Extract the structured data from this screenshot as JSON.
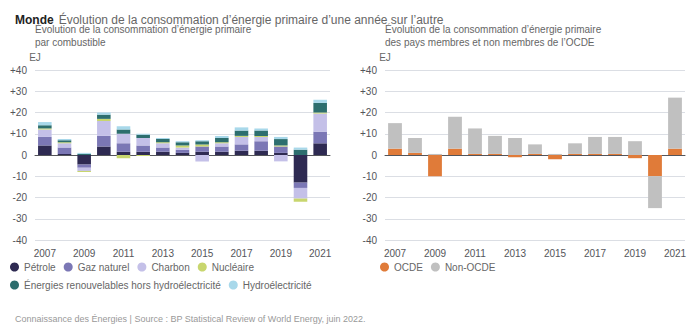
{
  "title": "Monde",
  "subtitle": "Évolution de la consommation d’énergie primaire d’une année sur l’autre",
  "annotations": [
    "Connaissance des Énergies | Source : BP Statistical Review of World Energy, juin 2022."
  ],
  "chart_data": [
    {
      "type": "bar",
      "stacked": true,
      "title": "Évolution de la consommation d’énergie primaire",
      "subtitle": "par combustible",
      "ylabel": "EJ",
      "categories": [
        "2007",
        null,
        "2009",
        null,
        "2011",
        null,
        "2013",
        null,
        "2015",
        null,
        "2017",
        null,
        "2019",
        null,
        "2021"
      ],
      "ylim": [
        -40,
        40
      ],
      "yticks": [
        -40,
        -30,
        -20,
        -10,
        0,
        {
          "value": 10,
          "label": "+10"
        },
        {
          "value": 20,
          "label": "+20"
        },
        {
          "value": 30,
          "label": "+30"
        },
        {
          "value": 40,
          "label": "+40"
        }
      ],
      "grid": true,
      "legend": "bottom",
      "series": [
        {
          "name": "Pétrole",
          "color": "#2e2a52",
          "values": [
            4.5,
            0.5,
            -4.5,
            4.0,
            1.5,
            1.5,
            1.5,
            1.0,
            1.5,
            1.5,
            2.0,
            2.0,
            1.0,
            -13.0,
            5.5
          ]
        },
        {
          "name": "Gaz naturel",
          "color": "#7b77b5",
          "values": [
            4.0,
            3.0,
            -1.5,
            5.0,
            4.0,
            3.0,
            2.0,
            1.5,
            2.5,
            2.5,
            3.0,
            4.5,
            3.0,
            -2.5,
            5.5
          ]
        },
        {
          "name": "Charbon",
          "color": "#c4c0e8",
          "values": [
            3.5,
            2.0,
            -1.5,
            7.0,
            4.5,
            3.5,
            2.0,
            1.0,
            -3.0,
            1.5,
            3.5,
            2.0,
            -3.0,
            -5.0,
            8.5
          ]
        },
        {
          "name": "Nucléaire",
          "color": "#c8d66e",
          "values": [
            0.5,
            0.5,
            -0.5,
            1.0,
            -1.5,
            -0.5,
            0.5,
            1.0,
            1.0,
            0.5,
            0.5,
            0.5,
            0.5,
            -1.5,
            0.5
          ]
        },
        {
          "name": "Énergies renouvelables hors hydroélectricité",
          "color": "#2d6e6e",
          "values": [
            1.5,
            1.0,
            0.5,
            2.0,
            2.0,
            1.5,
            1.5,
            1.5,
            1.5,
            2.0,
            2.5,
            2.5,
            3.0,
            2.5,
            4.5
          ]
        },
        {
          "name": "Hydroélectricité",
          "color": "#a8d8ea",
          "values": [
            1.5,
            0.5,
            0.5,
            1.0,
            1.5,
            0.5,
            0.5,
            0.5,
            0.5,
            1.0,
            1.5,
            1.0,
            1.0,
            1.0,
            1.5
          ]
        }
      ]
    },
    {
      "type": "bar",
      "stacked": true,
      "title": "Évolution de la consommation d’énergie primaire",
      "subtitle": "des pays membres et non membres de l’OCDE",
      "ylabel": "EJ",
      "categories": [
        "2007",
        null,
        "2009",
        null,
        "2011",
        null,
        "2013",
        null,
        "2015",
        null,
        "2017",
        null,
        "2019",
        null,
        "2021"
      ],
      "ylim": [
        -40,
        40
      ],
      "yticks": [
        -40,
        -30,
        -20,
        -10,
        0,
        {
          "value": 10,
          "label": "+10"
        },
        {
          "value": 20,
          "label": "+20"
        },
        {
          "value": 30,
          "label": "+30"
        },
        {
          "value": 40,
          "label": "+40"
        }
      ],
      "grid": true,
      "legend": "bottom",
      "series": [
        {
          "name": "OCDE",
          "color": "#e07b39",
          "values": [
            3.0,
            1.0,
            -10.0,
            3.0,
            0.5,
            0.5,
            -1.0,
            0.5,
            -2.0,
            0.5,
            0.5,
            0.5,
            -1.5,
            -10.0,
            3.0
          ]
        },
        {
          "name": "Non-OCDE",
          "color": "#c0c0c0",
          "values": [
            12.0,
            7.0,
            0.5,
            15.0,
            12.0,
            8.5,
            8.0,
            4.5,
            0.5,
            5.0,
            8.0,
            8.0,
            6.5,
            -15.0,
            24.0
          ]
        }
      ]
    }
  ]
}
